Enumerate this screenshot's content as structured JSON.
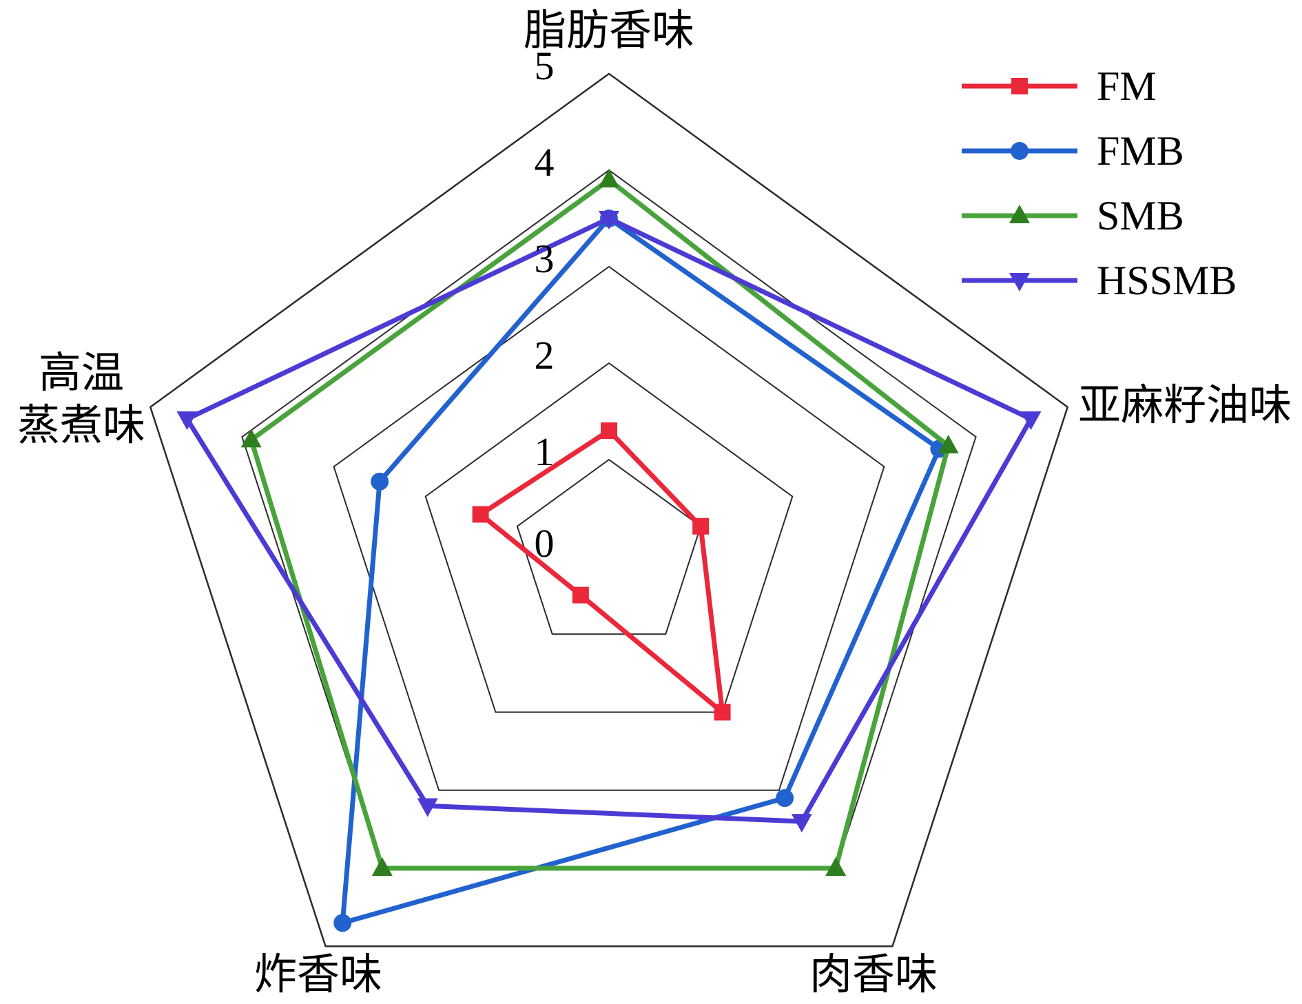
{
  "chart_data": {
    "type": "radar",
    "title": "",
    "categories": [
      "脂肪香味",
      "亚麻籽油味",
      "肉香味",
      "炸香味",
      "高温蒸煮味"
    ],
    "category_display": [
      "脂肪香味",
      "亚麻籽油味",
      "肉香味",
      "炸香味",
      "高温\n蒸煮味"
    ],
    "ticks": [
      "5",
      "4",
      "3",
      "2",
      "1",
      "0"
    ],
    "axis_range": [
      0,
      5
    ],
    "grid": "concentric-pentagons",
    "legend_position": "top-right",
    "grid_color": "#2b2b2b",
    "series": [
      {
        "name": "FM",
        "color": "#ea2839",
        "marker": "square",
        "values": [
          1.3,
          1.0,
          2.0,
          0.5,
          1.4
        ]
      },
      {
        "name": "FMB",
        "color": "#2262cf",
        "marker": "circle",
        "values": [
          3.5,
          3.6,
          3.1,
          4.7,
          2.5
        ]
      },
      {
        "name": "SMB",
        "color": "#49a33b",
        "marker_color": "#2e7d1e",
        "marker": "triangle-up",
        "values": [
          3.9,
          3.7,
          4.0,
          4.0,
          3.9
        ]
      },
      {
        "name": "HSSMB",
        "color": "#4b3bd4",
        "marker": "triangle-down",
        "values": [
          3.5,
          4.6,
          3.4,
          3.2,
          4.6
        ]
      }
    ]
  }
}
